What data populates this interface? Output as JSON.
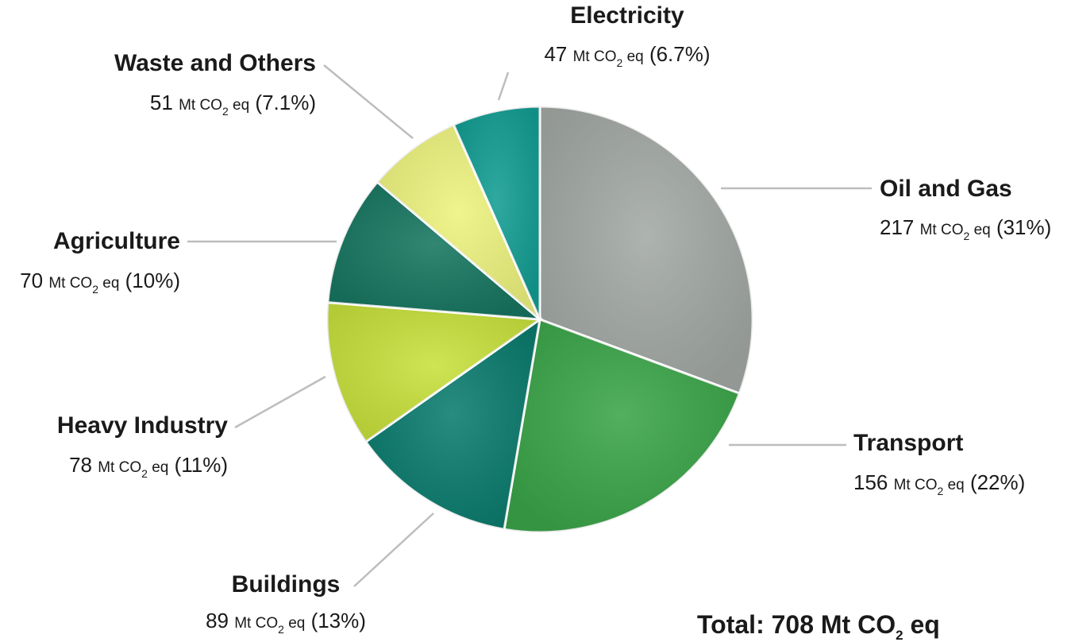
{
  "chart_data": {
    "type": "pie",
    "unit_prefix": "Mt",
    "unit_chem": "CO",
    "unit_sub": "2",
    "unit_suffix": "eq",
    "slices": [
      {
        "name": "Oil and Gas",
        "value": 217,
        "percent": "31%",
        "color": "#a3a9a5"
      },
      {
        "name": "Transport",
        "value": 156,
        "percent": "22%",
        "color": "#3aa548"
      },
      {
        "name": "Buildings",
        "value": 89,
        "percent": "13%",
        "color": "#0b7c6e"
      },
      {
        "name": "Heavy Industry",
        "value": 78,
        "percent": "11%",
        "color": "#c8e13c"
      },
      {
        "name": "Agriculture",
        "value": 70,
        "percent": "10%",
        "color": "#167660"
      },
      {
        "name": "Waste and Others",
        "value": 51,
        "percent": "7.1%",
        "color": "#eef37e"
      },
      {
        "name": "Electricity",
        "value": 47,
        "percent": "6.7%",
        "color": "#139e93"
      }
    ],
    "total": {
      "label": "Total:",
      "value": 708
    }
  }
}
